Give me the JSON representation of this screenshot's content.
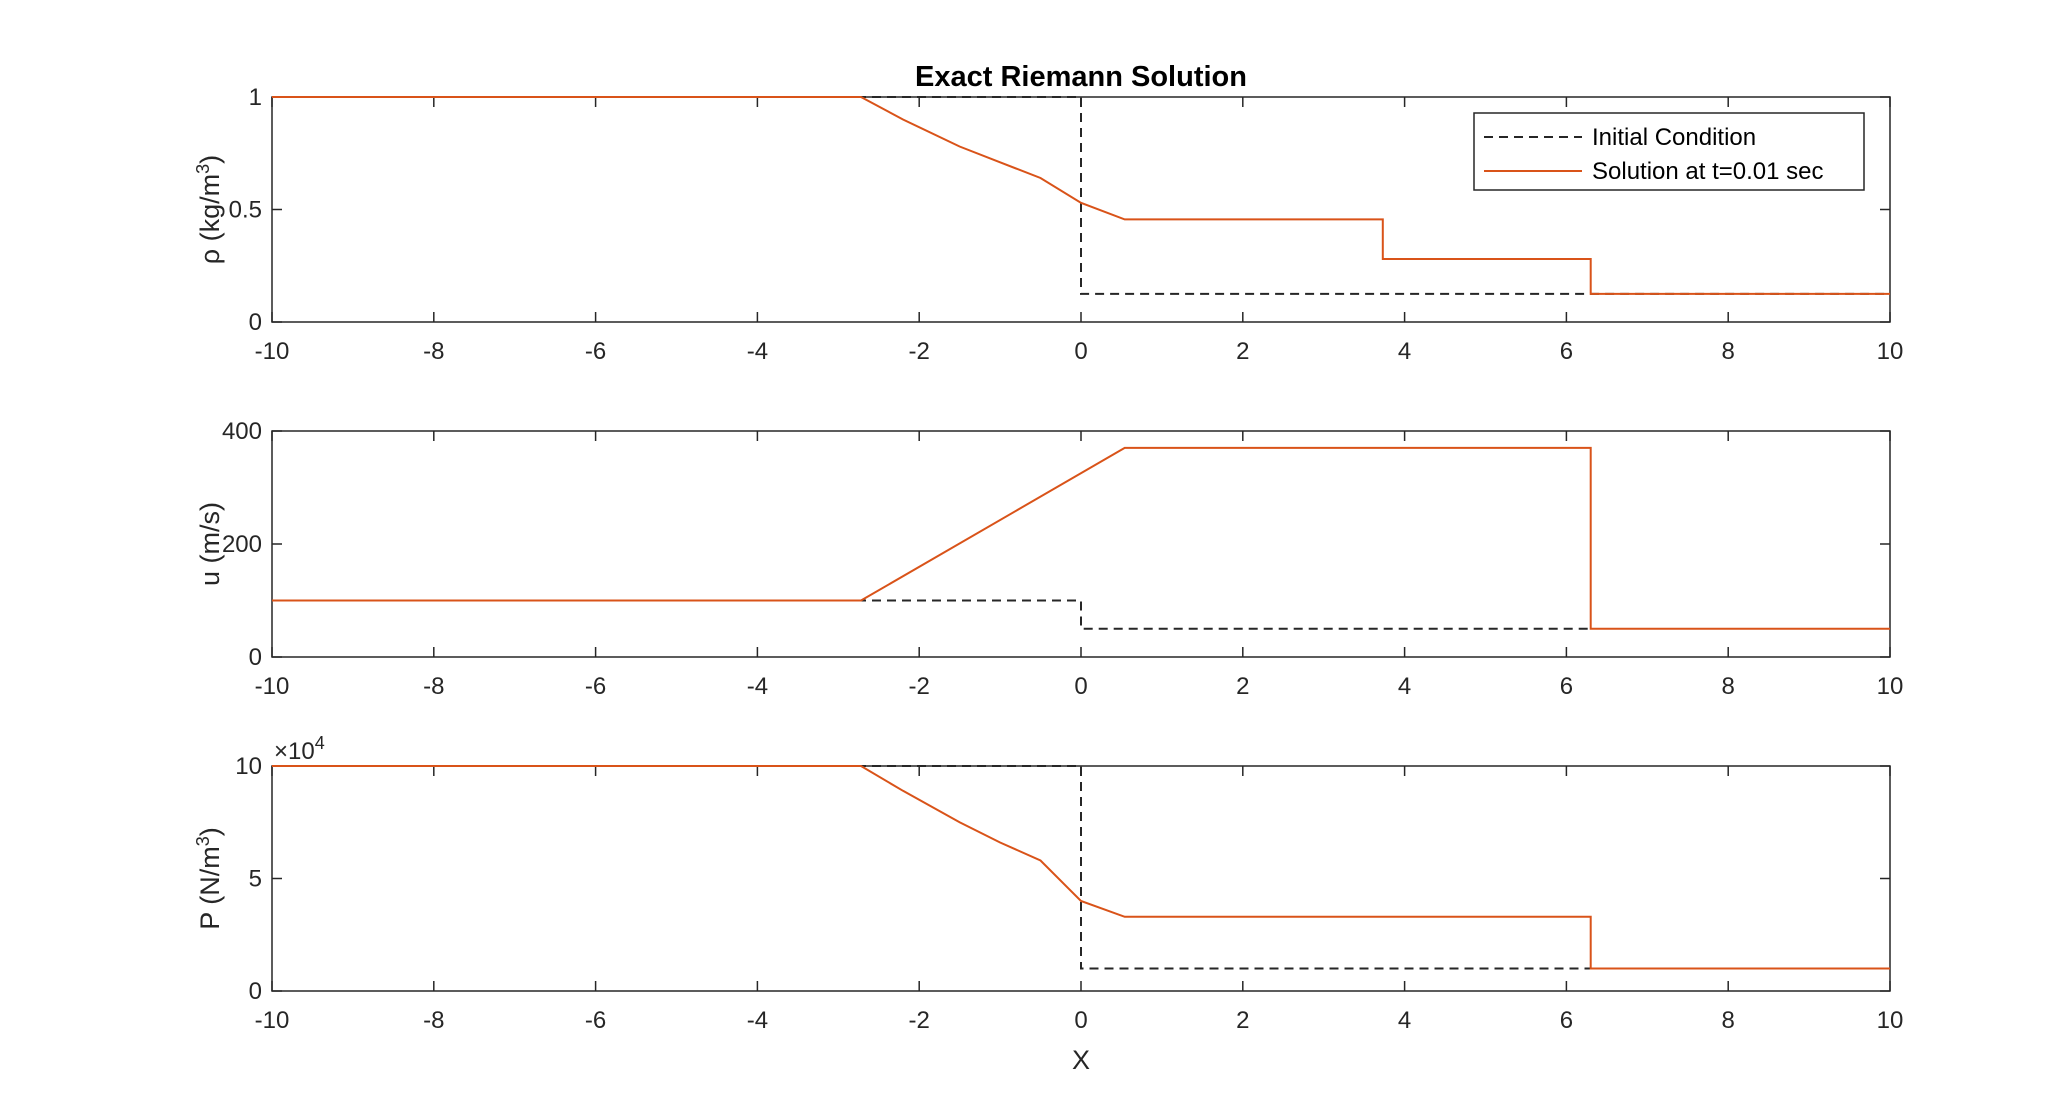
{
  "chart_data": {
    "type": "line",
    "title": "Exact Riemann Solution",
    "xlabel": "X",
    "legend": {
      "placement": "top-right",
      "entries": [
        "Initial Condition",
        "Solution at t=0.01 sec"
      ]
    },
    "colors": {
      "initial": "#262626",
      "solution": "#D95319",
      "axes": "#262626"
    },
    "xlim": [
      -10,
      10
    ],
    "xticks": [
      "-10",
      "-8",
      "-6",
      "-4",
      "-2",
      "0",
      "2",
      "4",
      "6",
      "8",
      "10"
    ],
    "subplots": [
      {
        "ylabel": "ρ (kg/m",
        "ylabel_sup": "3",
        "ylabel_close": ")",
        "ylim": [
          0,
          1
        ],
        "yticks": [
          "0",
          "0.5",
          "1"
        ],
        "yticks_values": [
          0,
          0.5,
          1
        ],
        "series": [
          {
            "name": "Initial Condition",
            "style": "dashed",
            "x": [
              -10,
              0,
              0,
              10
            ],
            "y": [
              1,
              1,
              0.125,
              0.125
            ]
          },
          {
            "name": "Solution at t=0.01 sec",
            "style": "solid",
            "x": [
              -10,
              -2.72,
              -2.2,
              -1.5,
              -1.0,
              -0.5,
              0,
              0.54,
              3.73,
              3.73,
              6.3,
              6.3,
              10
            ],
            "y": [
              1,
              1,
              0.9,
              0.78,
              0.71,
              0.64,
              0.53,
              0.456,
              0.456,
              0.28,
              0.28,
              0.125,
              0.125
            ]
          }
        ]
      },
      {
        "ylabel": "u (m/s)",
        "ylim": [
          0,
          400
        ],
        "yticks": [
          "0",
          "200",
          "400"
        ],
        "yticks_values": [
          0,
          200,
          400
        ],
        "series": [
          {
            "name": "Initial Condition",
            "style": "dashed",
            "x": [
              -10,
              0,
              0,
              6.3
            ],
            "y": [
              100,
              100,
              50,
              50
            ]
          },
          {
            "name": "Solution at t=0.01 sec",
            "style": "solid",
            "x": [
              -10,
              -2.72,
              0.54,
              6.3,
              6.3,
              10
            ],
            "y": [
              100,
              100,
              370,
              370,
              50,
              50
            ]
          }
        ]
      },
      {
        "ylabel": "P (N/m",
        "ylabel_sup": "3",
        "ylabel_close": ")",
        "ylim": [
          0,
          10
        ],
        "yticks": [
          "0",
          "5",
          "10"
        ],
        "yticks_values": [
          0,
          5,
          10
        ],
        "exponent_base": "×10",
        "exponent_power": "4",
        "series": [
          {
            "name": "Initial Condition",
            "style": "dashed",
            "x": [
              -10,
              0,
              0,
              6.3
            ],
            "y": [
              10,
              10,
              1,
              1
            ]
          },
          {
            "name": "Solution at t=0.01 sec",
            "style": "solid",
            "x": [
              -10,
              -2.72,
              -2.2,
              -1.5,
              -1.0,
              -0.5,
              0,
              0.54,
              6.3,
              6.3,
              10
            ],
            "y": [
              10,
              10,
              8.9,
              7.5,
              6.6,
              5.8,
              4.0,
              3.3,
              3.3,
              1.0,
              1.0
            ]
          }
        ]
      }
    ]
  }
}
